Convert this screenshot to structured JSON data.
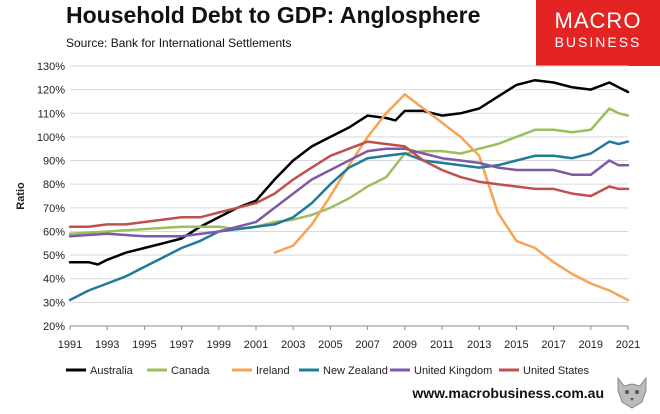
{
  "header": {
    "title": "Household Debt to GDP: Anglosphere",
    "source": "Source: Bank for International Settlements"
  },
  "logo": {
    "line1": "MACRO",
    "line2": "BUSINESS"
  },
  "footer": {
    "website": "www.macrobusiness.com.au"
  },
  "chart_data": {
    "type": "line",
    "title": "Household Debt to GDP: Anglosphere",
    "xlabel": "",
    "ylabel": "Ratio",
    "xlim": [
      1991,
      2021
    ],
    "ylim": [
      20,
      130
    ],
    "x_ticks": [
      "1991",
      "1993",
      "1995",
      "1997",
      "1999",
      "2001",
      "2003",
      "2005",
      "2007",
      "2009",
      "2011",
      "2013",
      "2015",
      "2017",
      "2019",
      "2021"
    ],
    "y_ticks": [
      "20%",
      "30%",
      "40%",
      "50%",
      "60%",
      "70%",
      "80%",
      "90%",
      "100%",
      "110%",
      "120%",
      "130%"
    ],
    "legend_position": "bottom",
    "series": [
      {
        "name": "Australia",
        "color": "#000000",
        "points": [
          [
            1991,
            47
          ],
          [
            1992,
            47
          ],
          [
            1992.5,
            46
          ],
          [
            1993,
            48
          ],
          [
            1994,
            51
          ],
          [
            1995,
            53
          ],
          [
            1996,
            55
          ],
          [
            1997,
            57
          ],
          [
            1998,
            62
          ],
          [
            1999,
            66
          ],
          [
            2000,
            70
          ],
          [
            2001,
            73
          ],
          [
            2002,
            82
          ],
          [
            2003,
            90
          ],
          [
            2004,
            96
          ],
          [
            2005,
            100
          ],
          [
            2006,
            104
          ],
          [
            2007,
            109
          ],
          [
            2008,
            108
          ],
          [
            2008.5,
            107
          ],
          [
            2009,
            111
          ],
          [
            2010,
            111
          ],
          [
            2011,
            109
          ],
          [
            2012,
            110
          ],
          [
            2013,
            112
          ],
          [
            2014,
            117
          ],
          [
            2015,
            122
          ],
          [
            2016,
            124
          ],
          [
            2017,
            123
          ],
          [
            2018,
            121
          ],
          [
            2019,
            120
          ],
          [
            2020,
            123
          ],
          [
            2020.5,
            121
          ],
          [
            2021,
            119
          ]
        ]
      },
      {
        "name": "Canada",
        "color": "#9cbf5d",
        "points": [
          [
            1991,
            59
          ],
          [
            1993,
            60
          ],
          [
            1995,
            61
          ],
          [
            1997,
            62
          ],
          [
            1999,
            62
          ],
          [
            2000,
            61
          ],
          [
            2001,
            62
          ],
          [
            2002,
            64
          ],
          [
            2003,
            65
          ],
          [
            2004,
            67
          ],
          [
            2005,
            70
          ],
          [
            2006,
            74
          ],
          [
            2007,
            79
          ],
          [
            2008,
            83
          ],
          [
            2009,
            93
          ],
          [
            2010,
            94
          ],
          [
            2011,
            94
          ],
          [
            2012,
            93
          ],
          [
            2013,
            95
          ],
          [
            2014,
            97
          ],
          [
            2015,
            100
          ],
          [
            2016,
            103
          ],
          [
            2017,
            103
          ],
          [
            2018,
            102
          ],
          [
            2019,
            103
          ],
          [
            2020,
            112
          ],
          [
            2020.5,
            110
          ],
          [
            2021,
            109
          ]
        ]
      },
      {
        "name": "Ireland",
        "color": "#f7a354",
        "points": [
          [
            2002,
            51
          ],
          [
            2003,
            54
          ],
          [
            2004,
            63
          ],
          [
            2005,
            75
          ],
          [
            2006,
            88
          ],
          [
            2007,
            100
          ],
          [
            2008,
            110
          ],
          [
            2009,
            118
          ],
          [
            2010,
            112
          ],
          [
            2011,
            106
          ],
          [
            2012,
            100
          ],
          [
            2013,
            92
          ],
          [
            2014,
            68
          ],
          [
            2015,
            56
          ],
          [
            2016,
            53
          ],
          [
            2017,
            47
          ],
          [
            2018,
            42
          ],
          [
            2019,
            38
          ],
          [
            2020,
            35
          ],
          [
            2021,
            31
          ]
        ]
      },
      {
        "name": "New Zealand",
        "color": "#1e7b9a",
        "points": [
          [
            1991,
            31
          ],
          [
            1992,
            35
          ],
          [
            1993,
            38
          ],
          [
            1994,
            41
          ],
          [
            1995,
            45
          ],
          [
            1996,
            49
          ],
          [
            1997,
            53
          ],
          [
            1998,
            56
          ],
          [
            1999,
            60
          ],
          [
            2000,
            61
          ],
          [
            2001,
            62
          ],
          [
            2002,
            63
          ],
          [
            2003,
            66
          ],
          [
            2004,
            72
          ],
          [
            2005,
            80
          ],
          [
            2006,
            87
          ],
          [
            2007,
            91
          ],
          [
            2008,
            92
          ],
          [
            2009,
            93
          ],
          [
            2010,
            90
          ],
          [
            2011,
            89
          ],
          [
            2012,
            88
          ],
          [
            2013,
            87
          ],
          [
            2014,
            88
          ],
          [
            2015,
            90
          ],
          [
            2016,
            92
          ],
          [
            2017,
            92
          ],
          [
            2018,
            91
          ],
          [
            2019,
            93
          ],
          [
            2020,
            98
          ],
          [
            2020.5,
            97
          ],
          [
            2021,
            98
          ]
        ]
      },
      {
        "name": "United Kingdom",
        "color": "#7d5aa6",
        "points": [
          [
            1991,
            58
          ],
          [
            1993,
            59
          ],
          [
            1995,
            58
          ],
          [
            1997,
            58
          ],
          [
            1999,
            60
          ],
          [
            2001,
            64
          ],
          [
            2002,
            70
          ],
          [
            2003,
            76
          ],
          [
            2004,
            82
          ],
          [
            2005,
            86
          ],
          [
            2006,
            90
          ],
          [
            2007,
            94
          ],
          [
            2008,
            95
          ],
          [
            2009,
            95
          ],
          [
            2010,
            93
          ],
          [
            2011,
            91
          ],
          [
            2012,
            90
          ],
          [
            2013,
            89
          ],
          [
            2014,
            87
          ],
          [
            2015,
            86
          ],
          [
            2016,
            86
          ],
          [
            2017,
            86
          ],
          [
            2018,
            84
          ],
          [
            2019,
            84
          ],
          [
            2020,
            90
          ],
          [
            2020.5,
            88
          ],
          [
            2021,
            88
          ]
        ]
      },
      {
        "name": "United States",
        "color": "#c0504d",
        "points": [
          [
            1991,
            62
          ],
          [
            1992,
            62
          ],
          [
            1993,
            63
          ],
          [
            1994,
            63
          ],
          [
            1995,
            64
          ],
          [
            1996,
            65
          ],
          [
            1997,
            66
          ],
          [
            1998,
            66
          ],
          [
            1999,
            68
          ],
          [
            2000,
            70
          ],
          [
            2001,
            72
          ],
          [
            2002,
            76
          ],
          [
            2003,
            82
          ],
          [
            2004,
            87
          ],
          [
            2005,
            92
          ],
          [
            2006,
            95
          ],
          [
            2007,
            98
          ],
          [
            2008,
            97
          ],
          [
            2009,
            96
          ],
          [
            2010,
            90
          ],
          [
            2011,
            86
          ],
          [
            2012,
            83
          ],
          [
            2013,
            81
          ],
          [
            2014,
            80
          ],
          [
            2015,
            79
          ],
          [
            2016,
            78
          ],
          [
            2017,
            78
          ],
          [
            2018,
            76
          ],
          [
            2019,
            75
          ],
          [
            2020,
            79
          ],
          [
            2020.5,
            78
          ],
          [
            2021,
            78
          ]
        ]
      }
    ]
  }
}
